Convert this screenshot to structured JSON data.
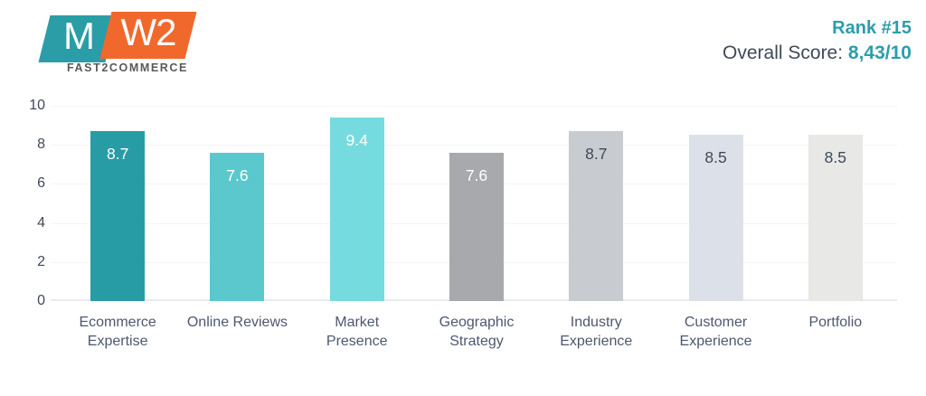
{
  "logo": {
    "mark_left": "M",
    "mark_right": "W2",
    "subtitle": "FAST2COMMERCE",
    "teal_color": "#2A9DA6",
    "orange_color": "#F1682C"
  },
  "header": {
    "rank": "Rank #15",
    "overall_label": "Overall Score: ",
    "overall_value": "8,43/10",
    "accent_color": "#2D9DAA",
    "text_color": "#3E4A5A"
  },
  "chart_data": {
    "type": "bar",
    "title": "",
    "xlabel": "",
    "ylabel": "",
    "categories": [
      "Ecommerce Expertise",
      "Online Reviews",
      "Market Presence",
      "Geographic Strategy",
      "Industry Experience",
      "Customer Experience",
      "Portfolio"
    ],
    "values": [
      8.7,
      7.6,
      9.4,
      7.6,
      8.7,
      8.5,
      8.5
    ],
    "value_labels": [
      "8.7",
      "7.6",
      "9.4",
      "7.6",
      "8.7",
      "8.5",
      "8.5"
    ],
    "bar_colors": [
      "#279CA5",
      "#5BC8CE",
      "#76DBDF",
      "#A7A9AC",
      "#C8CBCF",
      "#DCE1E9",
      "#E8E8E6"
    ],
    "value_label_colors": [
      "#FFFFFF",
      "#FFFFFF",
      "#FFFFFF",
      "#FFFFFF",
      "#3E4A5A",
      "#3E4A5A",
      "#3E4A5A"
    ],
    "y_ticks": [
      0,
      2,
      4,
      6,
      8,
      10
    ],
    "ylim": [
      0,
      10
    ],
    "grid": true,
    "legend": false
  }
}
